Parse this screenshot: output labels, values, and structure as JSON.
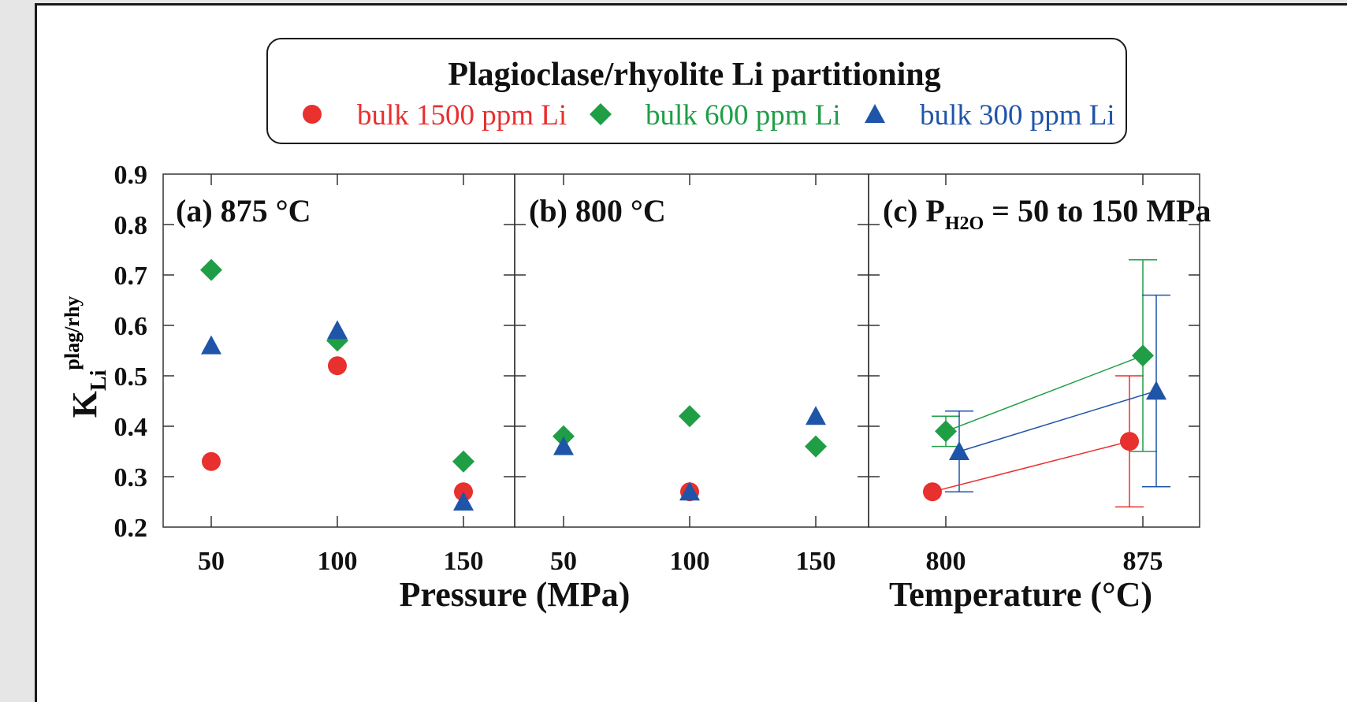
{
  "colors": {
    "bulk1500": "#e8302f",
    "bulk600": "#1f9e46",
    "bulk300": "#1f55a8",
    "axis": "#333333"
  },
  "legend": {
    "title": "Plagioclase/rhyolite Li partitioning",
    "entries": [
      {
        "key": "bulk1500",
        "label": "bulk 1500 ppm Li",
        "marker": "circle"
      },
      {
        "key": "bulk600",
        "label": "bulk 600 ppm Li",
        "marker": "diamond"
      },
      {
        "key": "bulk300",
        "label": "bulk 300 ppm Li",
        "marker": "triangle"
      }
    ]
  },
  "chart_data": [
    {
      "type": "scatter",
      "panel_title": "(a) 875 °C",
      "xlabel": "Pressure (MPa)",
      "ylabel": "K_Li^plag/rhy",
      "x_ticks": [
        "50",
        "100",
        "150"
      ],
      "ylim": [
        0.2,
        0.9
      ],
      "y_ticks": [
        "0.2",
        "0.3",
        "0.4",
        "0.5",
        "0.6",
        "0.7",
        "0.8",
        "0.9"
      ],
      "series": [
        {
          "key": "bulk1500",
          "name": "bulk 1500 ppm Li",
          "points": [
            [
              50,
              0.33
            ],
            [
              100,
              0.52
            ],
            [
              150,
              0.27
            ]
          ]
        },
        {
          "key": "bulk600",
          "name": "bulk 600 ppm Li",
          "points": [
            [
              50,
              0.71
            ],
            [
              100,
              0.57
            ],
            [
              150,
              0.33
            ]
          ]
        },
        {
          "key": "bulk300",
          "name": "bulk 300 ppm Li",
          "points": [
            [
              50,
              0.56
            ],
            [
              100,
              0.59
            ],
            [
              150,
              0.25
            ]
          ]
        }
      ]
    },
    {
      "type": "scatter",
      "panel_title": "(b) 800 °C",
      "xlabel": "Pressure (MPa)",
      "x_ticks": [
        "50",
        "100",
        "150"
      ],
      "ylim": [
        0.2,
        0.9
      ],
      "series": [
        {
          "key": "bulk1500",
          "name": "bulk 1500 ppm Li",
          "points": [
            [
              100,
              0.27
            ]
          ]
        },
        {
          "key": "bulk600",
          "name": "bulk 600 ppm Li",
          "points": [
            [
              50,
              0.38
            ],
            [
              100,
              0.42
            ],
            [
              150,
              0.36
            ]
          ]
        },
        {
          "key": "bulk300",
          "name": "bulk 300 ppm Li",
          "points": [
            [
              50,
              0.36
            ],
            [
              100,
              0.27
            ],
            [
              150,
              0.42
            ]
          ]
        }
      ]
    },
    {
      "type": "line",
      "panel_title_main": "(c) P",
      "panel_title_sub": "H2O",
      "panel_title_rest": " = 50 to 150 MPa",
      "xlabel": "Temperature (°C)",
      "x_ticks": [
        "800",
        "875"
      ],
      "ylim": [
        0.2,
        0.9
      ],
      "series": [
        {
          "key": "bulk1500",
          "name": "bulk 1500 ppm Li",
          "points": [
            [
              800,
              0.27,
              null,
              null
            ],
            [
              875,
              0.37,
              0.24,
              0.5
            ]
          ]
        },
        {
          "key": "bulk600",
          "name": "bulk 600 ppm Li",
          "points": [
            [
              800,
              0.39,
              0.36,
              0.42
            ],
            [
              875,
              0.54,
              0.35,
              0.73
            ]
          ]
        },
        {
          "key": "bulk300",
          "name": "bulk 300 ppm Li",
          "points": [
            [
              800,
              0.35,
              0.27,
              0.43
            ],
            [
              875,
              0.47,
              0.28,
              0.66
            ]
          ]
        }
      ]
    }
  ]
}
